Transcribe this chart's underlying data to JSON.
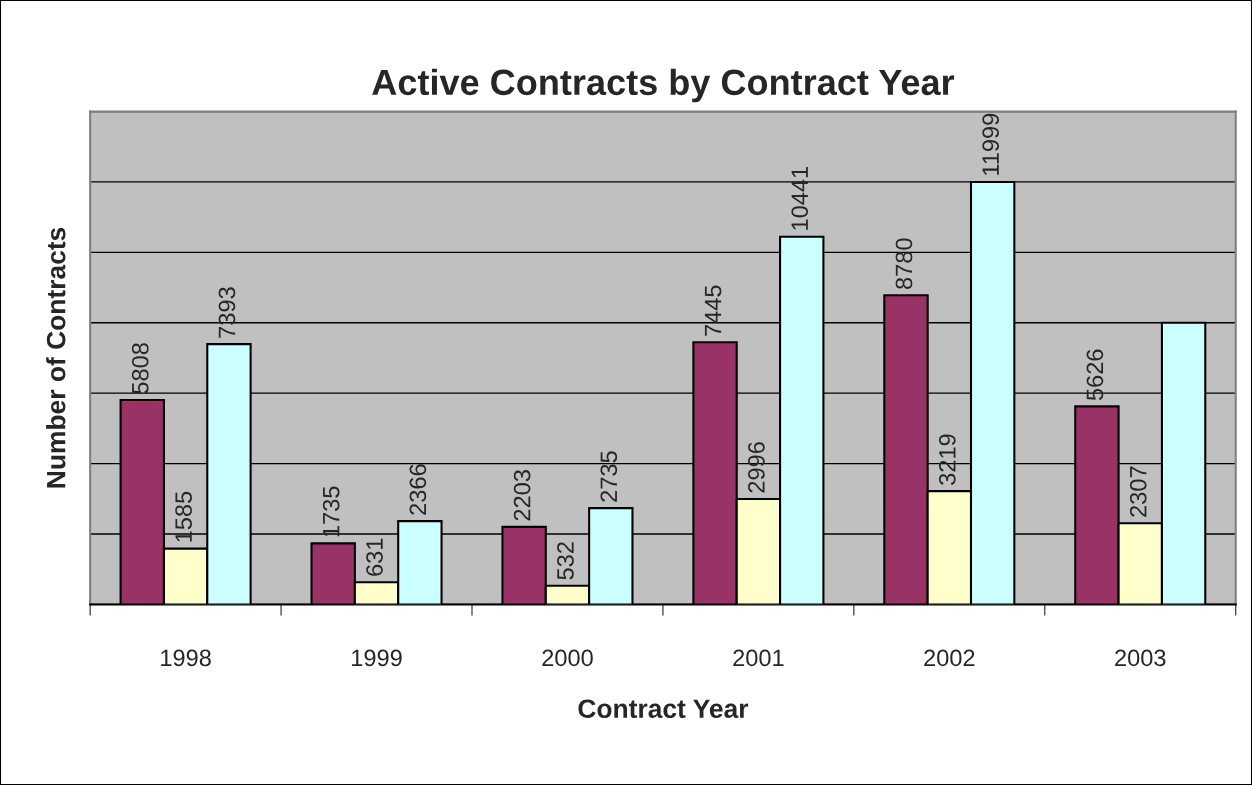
{
  "chart_data": {
    "type": "bar",
    "title": "Active Contracts by Contract Year",
    "xlabel": "Contract Year",
    "ylabel": "Number of Contracts",
    "categories": [
      "1998",
      "1999",
      "2000",
      "2001",
      "2002",
      "2003"
    ],
    "series": [
      {
        "color": "#993366",
        "values": [
          5808,
          1735,
          2203,
          7445,
          8780,
          5626
        ],
        "value_labels": [
          "5808",
          "1735",
          "2203",
          "7445",
          "8780",
          "5626"
        ]
      },
      {
        "color": "#ffffcc",
        "values": [
          1585,
          631,
          532,
          2996,
          3219,
          2307
        ],
        "value_labels": [
          "1585",
          "631",
          "532",
          "2996",
          "3219",
          "2307"
        ]
      },
      {
        "color": "#ccffff",
        "values": [
          7393,
          2366,
          2735,
          10441,
          11999,
          8000
        ],
        "value_labels": [
          "7393",
          "2366",
          "2735",
          "10441",
          "11999",
          null
        ]
      }
    ],
    "ylim": [
      0,
      14000
    ],
    "yticks": [
      {
        "value": 0,
        "label": null
      },
      {
        "value": 2000,
        "label": null
      },
      {
        "value": 4000,
        "label": null
      },
      {
        "value": 6000,
        "label": null
      },
      {
        "value": 8000,
        "label": null
      },
      {
        "value": 10000,
        "label": null
      },
      {
        "value": 12000,
        "label": null
      },
      {
        "value": 14000,
        "label": null
      }
    ],
    "grid": "y",
    "tick_labels": "x",
    "legend": false
  }
}
